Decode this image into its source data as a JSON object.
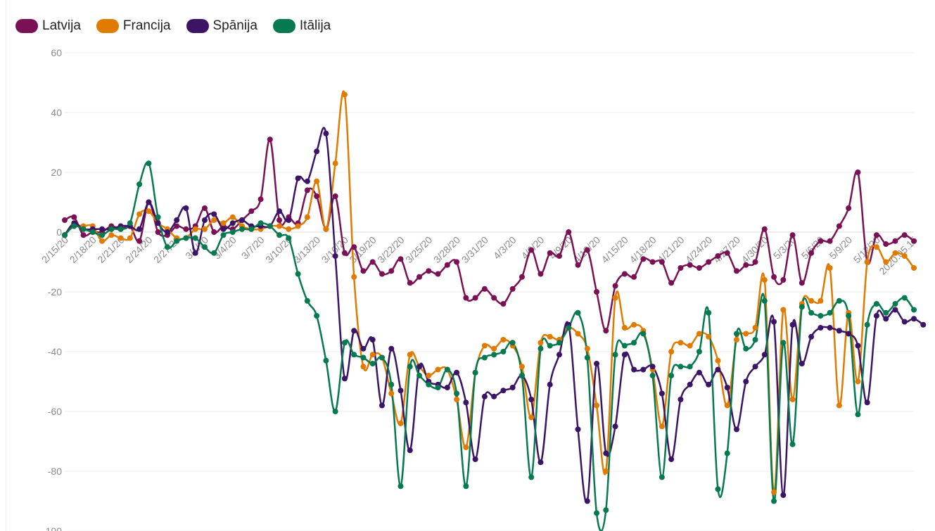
{
  "chart_data": {
    "type": "line",
    "title": "",
    "xlabel": "",
    "ylabel": "",
    "ylim": [
      -100,
      60
    ],
    "y_ticks": [
      60,
      40,
      20,
      0,
      -20,
      -40,
      -60,
      -80,
      -100
    ],
    "grid": true,
    "legend_placement": "top-left",
    "x_tick_labels": [
      "2/15/20",
      "2/18/20",
      "2/21/20",
      "2/24/20",
      "2/27/20",
      "3/1/20",
      "3/4/20",
      "3/7/20",
      "3/10/20",
      "3/13/20",
      "3/16/20",
      "3/19/20",
      "3/22/20",
      "3/25/20",
      "3/28/20",
      "3/31/20",
      "4/3/20",
      "4/6/20",
      "4/9/20",
      "4/12/20",
      "4/15/20",
      "4/18/20",
      "4/21/20",
      "4/24/20",
      "4/27/20",
      "4/30/20",
      "5/3/20",
      "5/6/20",
      "5/9/20",
      "5/12/20",
      "2020.05.15"
    ],
    "series": [
      {
        "name": "Latvija",
        "color": "#7a1155",
        "values": [
          4,
          5,
          -1,
          0,
          0,
          2,
          1,
          2,
          -3,
          10,
          0,
          -1,
          2,
          1,
          2,
          8,
          0,
          2,
          1,
          4,
          7,
          11,
          31,
          4,
          5,
          3,
          14,
          12,
          1,
          12,
          -7,
          -5,
          -13,
          -10,
          -14,
          -13,
          -9,
          -17,
          -15,
          -13,
          -14,
          -11,
          -10,
          -22,
          -22,
          -19,
          -22,
          -24,
          -19,
          -15,
          -6,
          -14,
          -7,
          -8,
          0,
          -11,
          -6,
          -20,
          -33,
          -18,
          -14,
          -15,
          -9,
          -10,
          -10,
          -17,
          -12,
          -11,
          -12,
          -10,
          -8,
          -7,
          -13,
          -11,
          -10,
          1,
          -15,
          -16,
          -1,
          -17,
          -7,
          -3,
          -3,
          2,
          8,
          20,
          -10,
          -1,
          -4,
          -3,
          -1,
          -3
        ]
      },
      {
        "name": "Francija",
        "color": "#e07b00",
        "values": [
          -1,
          2,
          2,
          2,
          -3,
          -1,
          -2,
          -2,
          6,
          7,
          3,
          1,
          -2,
          -2,
          1,
          1,
          4,
          3,
          5,
          2,
          1,
          1,
          2,
          2,
          1,
          2,
          5,
          17,
          1,
          23,
          46,
          -15,
          -45,
          -41,
          -42,
          -54,
          -64,
          -41,
          -45,
          -48,
          -46,
          -46,
          -56,
          -72,
          -47,
          -38,
          -39,
          -36,
          -38,
          -45,
          -62,
          -37,
          -35,
          -36,
          -32,
          -34,
          -39,
          -58,
          -80,
          -22,
          -32,
          -31,
          -33,
          -46,
          -65,
          -40,
          -37,
          -38,
          -34,
          -35,
          -43,
          -58,
          -36,
          -34,
          -32,
          -16,
          -87,
          -26,
          -56,
          -24,
          -23,
          -23,
          -12,
          -58,
          -27,
          -50,
          -10,
          -5,
          -10,
          -7,
          -8,
          -12
        ]
      },
      {
        "name": "Spānija",
        "color": "#3b1466",
        "values": [
          -1,
          3,
          1,
          1,
          1,
          1,
          2,
          2,
          1,
          10,
          3,
          0,
          4,
          8,
          -7,
          4,
          6,
          1,
          3,
          4,
          2,
          2,
          2,
          7,
          4,
          18,
          17,
          27,
          33,
          -8,
          -49,
          -33,
          -39,
          -36,
          -58,
          -39,
          -53,
          -73,
          -45,
          -50,
          -51,
          -52,
          -47,
          -57,
          -76,
          -55,
          -55,
          -53,
          -52,
          -48,
          -56,
          -77,
          -51,
          -41,
          -31,
          -66,
          -90,
          -44,
          -74,
          -65,
          -41,
          -46,
          -46,
          -45,
          -54,
          -76,
          -56,
          -51,
          -47,
          -51,
          -46,
          -52,
          -66,
          -50,
          -45,
          -41,
          -30,
          -88,
          -31,
          -44,
          -35,
          -32,
          -32,
          -33,
          -34,
          -38,
          -57,
          -28,
          -29,
          -26,
          -30,
          -29,
          -31
        ]
      },
      {
        "name": "Itālija",
        "color": "#05794f",
        "values": [
          -1,
          2,
          1,
          0,
          -1,
          1,
          1,
          3,
          16,
          23,
          5,
          -5,
          -3,
          -2,
          -2,
          -5,
          -7,
          -1,
          0,
          1,
          1,
          3,
          2,
          -1,
          -2,
          -14,
          -23,
          -28,
          -43,
          -60,
          -37,
          -41,
          -42,
          -44,
          -42,
          -51,
          -85,
          -45,
          -48,
          -51,
          -52,
          -46,
          -54,
          -85,
          -47,
          -42,
          -41,
          -40,
          -37,
          -48,
          -82,
          -39,
          -38,
          -37,
          -32,
          -27,
          -42,
          -94,
          -93,
          -41,
          -38,
          -37,
          -34,
          -48,
          -82,
          -48,
          -45,
          -45,
          -40,
          -27,
          -86,
          -74,
          -34,
          -39,
          -36,
          -23,
          -90,
          -37,
          -71,
          -25,
          -27,
          -28,
          -27,
          -23,
          -28,
          -61,
          -31,
          -24,
          -27,
          -24,
          -22,
          -26
        ]
      }
    ]
  }
}
